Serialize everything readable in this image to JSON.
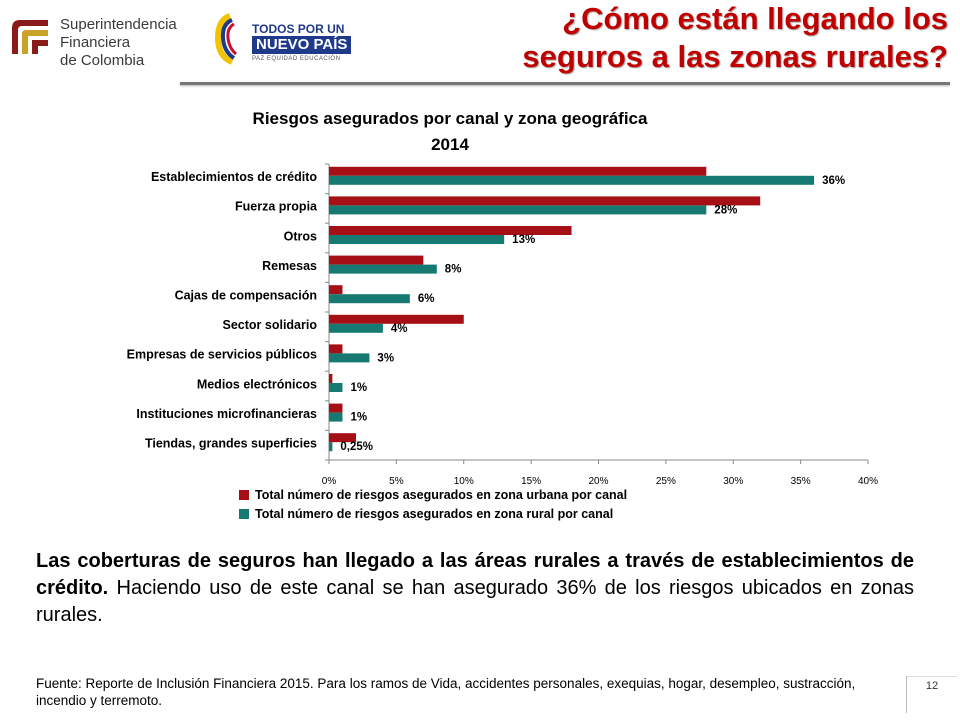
{
  "header": {
    "sfc_logo_lines": [
      "Superintendencia",
      "Financiera",
      "de Colombia"
    ],
    "gov_logo": {
      "top": "TODOS POR UN",
      "main": "NUEVO PAÍS",
      "sub": "PAZ  EQUIDAD  EDUCACIÓN"
    },
    "title_lines": [
      "¿Cómo están llegando los",
      "seguros a las zonas rurales?"
    ]
  },
  "colors": {
    "urban": "#a50f15",
    "rural": "#167a72",
    "title": "#c00000"
  },
  "chart_data": {
    "type": "bar",
    "orientation": "horizontal",
    "title": "Riesgos asegurados por canal y zona geográfica",
    "subtitle": "2014",
    "categories": [
      "Establecimientos de crédito",
      "Fuerza propia",
      "Otros",
      "Remesas",
      "Cajas de compensación",
      "Sector solidario",
      "Empresas de servicios públicos",
      "Medios electrónicos",
      "Instituciones microfinancieras",
      "Tiendas, grandes superficies"
    ],
    "series": [
      {
        "name": "Total número de riesgos asegurados en zona urbana por canal",
        "values": [
          28,
          32,
          18,
          7,
          1,
          10,
          1,
          0.25,
          1,
          2
        ]
      },
      {
        "name": "Total número de riesgos asegurados en zona rural por canal",
        "values": [
          36,
          28,
          13,
          8,
          6,
          4,
          3,
          1,
          1,
          0.25
        ]
      }
    ],
    "data_labels": [
      "36%",
      "28%",
      "13%",
      "8%",
      "6%",
      "4%",
      "3%",
      "1%",
      "1%",
      "0,25%"
    ],
    "xlim": [
      0,
      40
    ],
    "xticks": [
      "0%",
      "5%",
      "10%",
      "15%",
      "20%",
      "25%",
      "30%",
      "35%",
      "40%"
    ],
    "grid": false,
    "legend": "bottom"
  },
  "body": {
    "bold": "Las coberturas de seguros han llegado a las áreas rurales a través de establecimientos de crédito.",
    "normal": " Haciendo uso de este canal se han asegurado 36% de los riesgos ubicados en zonas rurales."
  },
  "footnote": "Fuente: Reporte de  Inclusión Financiera 2015. Para los ramos de Vida, accidentes personales, exequias, hogar, desempleo, sustracción, incendio y terremoto.",
  "page_number": "12"
}
